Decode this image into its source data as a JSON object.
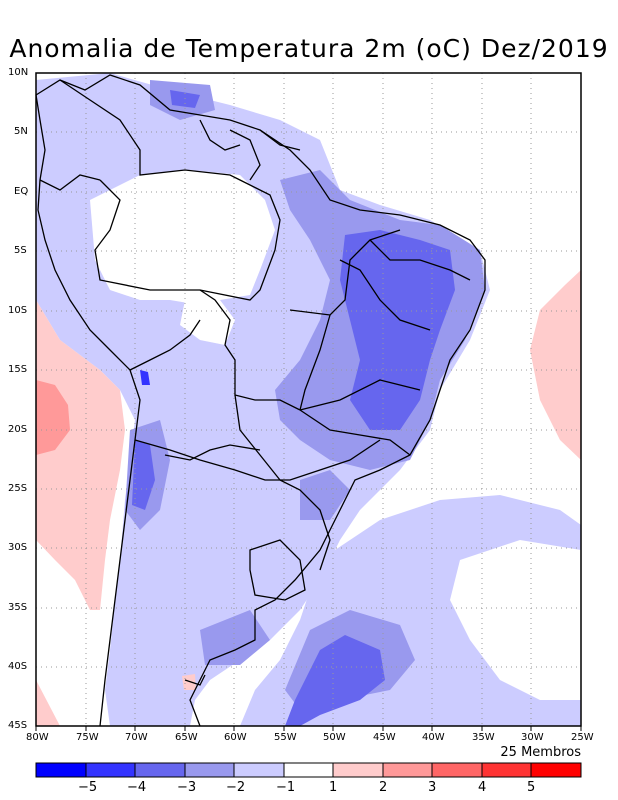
{
  "title": "Anomalia de Temperatura 2m (oC) Dez/2019",
  "members_label": "25 Membros",
  "lat_ticks": [
    "10N",
    "5N",
    "EQ",
    "5S",
    "10S",
    "15S",
    "20S",
    "25S",
    "30S",
    "35S",
    "40S",
    "45S"
  ],
  "lon_ticks": [
    "80W",
    "75W",
    "70W",
    "65W",
    "60W",
    "55W",
    "50W",
    "45W",
    "40W",
    "35W",
    "30W",
    "25W"
  ],
  "legend": {
    "colors": [
      "#0000ff",
      "#3333ff",
      "#6666ee",
      "#9999ee",
      "#ccccff",
      "#ffffff",
      "#ffcccc",
      "#ff9999",
      "#ff6666",
      "#ff3333",
      "#ff0000"
    ],
    "labels": [
      "-5",
      "-4",
      "-3",
      "-2",
      "-1",
      "1",
      "2",
      "3",
      "4",
      "5"
    ]
  }
}
